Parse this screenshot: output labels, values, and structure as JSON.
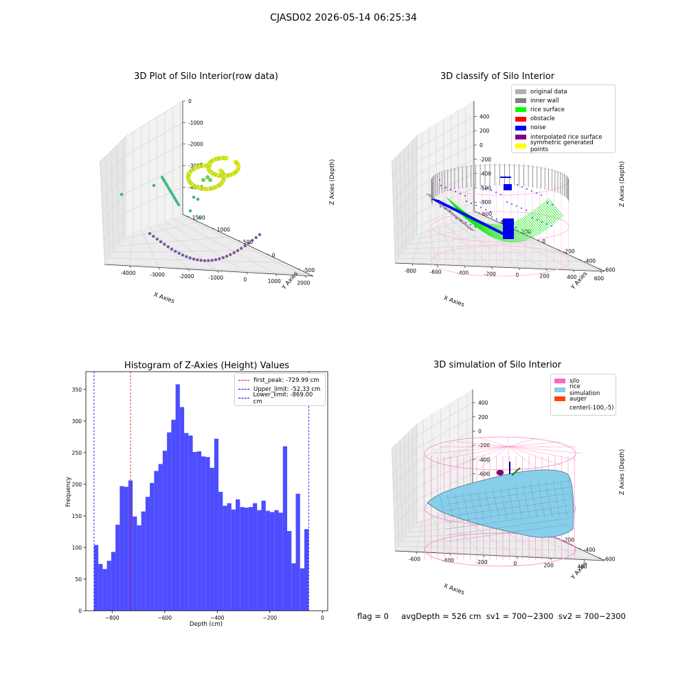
{
  "suptitle": "CJASD02 2026-05-14 06:25:34",
  "panels": {
    "raw": {
      "title": "3D Plot of Silo Interior(row data)",
      "xlabel": "X Axies",
      "ylabel": "Y Axies",
      "zlabel": "Z Axies (Depth)",
      "xticks": [
        "-4000",
        "-3000",
        "-2000",
        "-1000",
        "0",
        "1000",
        "2000"
      ],
      "yticks": [
        "-500",
        "0",
        "500",
        "1000",
        "1500"
      ],
      "zticks": [
        "0",
        "-1000",
        "-2000",
        "-3000",
        "-4000"
      ]
    },
    "classify": {
      "title": "3D classify of Silo Interior",
      "xlabel": "X Axies",
      "ylabel": "Y Axies",
      "zlabel": "Z Axies (Depth)",
      "xticks": [
        "-800",
        "-600",
        "-400",
        "-200",
        "0",
        "200",
        "400",
        "600"
      ],
      "yticks": [
        "-600",
        "-400",
        "-200",
        "0",
        "200",
        "400",
        "600"
      ],
      "zticks": [
        "400",
        "200",
        "0",
        "-200",
        "-400",
        "-600",
        "-800"
      ],
      "legend": [
        {
          "label": "original data",
          "color": "#b0b0b0"
        },
        {
          "label": "inner wall",
          "color": "#808080"
        },
        {
          "label": "rice surface",
          "color": "#00ff00"
        },
        {
          "label": "obstacle",
          "color": "#ff0000"
        },
        {
          "label": "noise",
          "color": "#0000ff"
        },
        {
          "label": "interpolated rice surface",
          "color": "#800080"
        },
        {
          "label": "symmetric generated points",
          "color": "#ffff00"
        }
      ]
    },
    "simulation": {
      "title": "3D simulation of Silo Interior",
      "xlabel": "X Axies",
      "ylabel": "Y Axies",
      "zlabel": "Z Axies (Depth)",
      "xticks": [
        "-600",
        "-400",
        "-200",
        "0",
        "200",
        "400"
      ],
      "yticks": [
        "-600",
        "-400",
        "-200",
        "0",
        "200",
        "400",
        "600"
      ],
      "zticks": [
        "400",
        "200",
        "0",
        "-200",
        "-400",
        "-600",
        "-800"
      ],
      "legend": [
        {
          "label": "silo",
          "color": "#ff69b4"
        },
        {
          "label": "rice simulation",
          "color": "#87ceeb"
        },
        {
          "label": "auger",
          "color": "#ff4500"
        },
        {
          "label": "center(-100,-5)",
          "color": ""
        }
      ]
    }
  },
  "footer": "flag = 0     avgDepth = 526 cm  sv1 = 700~2300  sv2 = 700~2300",
  "chart_data": [
    {
      "type": "scatter",
      "title": "3D Plot of Silo Interior(row data)",
      "xlabel": "X Axies",
      "ylabel": "Y Axies",
      "zlabel": "Z Axies (Depth)",
      "xlim": [
        -4500,
        2300
      ],
      "ylim": [
        -700,
        1800
      ],
      "zlim": [
        -4800,
        200
      ],
      "grid": true
    },
    {
      "type": "scatter",
      "title": "3D classify of Silo Interior",
      "xlabel": "X Axies",
      "ylabel": "Y Axies",
      "zlabel": "Z Axies (Depth)",
      "xlim": [
        -850,
        650
      ],
      "ylim": [
        -700,
        700
      ],
      "zlim": [
        -950,
        450
      ],
      "series": [
        {
          "name": "original data"
        },
        {
          "name": "inner wall"
        },
        {
          "name": "rice surface"
        },
        {
          "name": "obstacle"
        },
        {
          "name": "noise"
        },
        {
          "name": "interpolated rice surface"
        },
        {
          "name": "symmetric generated points"
        }
      ],
      "legend": "top-right",
      "grid": true
    },
    {
      "type": "histogram",
      "title": "Histogram of Z-Axies (Height) Values",
      "xlabel": "Depth (cm)",
      "ylabel": "Frequency",
      "bin_start": -869,
      "bin_width": 16.33,
      "values": [
        104,
        74,
        66,
        79,
        93,
        136,
        197,
        196,
        206,
        149,
        135,
        157,
        180,
        202,
        221,
        232,
        253,
        282,
        302,
        358,
        322,
        281,
        277,
        251,
        252,
        244,
        243,
        226,
        272,
        188,
        166,
        170,
        160,
        176,
        164,
        163,
        164,
        170,
        159,
        174,
        158,
        156,
        159,
        155,
        260,
        126,
        75,
        185,
        67,
        129
      ],
      "xlim": [
        -900,
        20
      ],
      "ylim": [
        0,
        378
      ],
      "xticks": [
        -800,
        -600,
        -400,
        -200,
        0
      ],
      "yticks": [
        0,
        50,
        100,
        150,
        200,
        250,
        300,
        350
      ],
      "vlines": [
        {
          "label": "first_peak: -729.99 cm",
          "x": -729.99,
          "color": "#ff0000"
        },
        {
          "label": "Upper_limit: -52.33 cm",
          "x": -52.33,
          "color": "#0000ff"
        },
        {
          "label": "Lower_limit: -869.00 cm",
          "x": -869.0,
          "color": "#0000ff"
        }
      ],
      "color": "#4d4dff",
      "legend": "top-right"
    },
    {
      "type": "surface",
      "title": "3D simulation of Silo Interior",
      "xlabel": "X Axies",
      "ylabel": "Y Axies",
      "zlabel": "Z Axies (Depth)",
      "xlim": [
        -750,
        550
      ],
      "ylim": [
        -700,
        700
      ],
      "zlim": [
        -950,
        450
      ],
      "series": [
        {
          "name": "silo"
        },
        {
          "name": "rice simulation"
        },
        {
          "name": "auger"
        }
      ],
      "legend": "top-right",
      "grid": true
    }
  ]
}
